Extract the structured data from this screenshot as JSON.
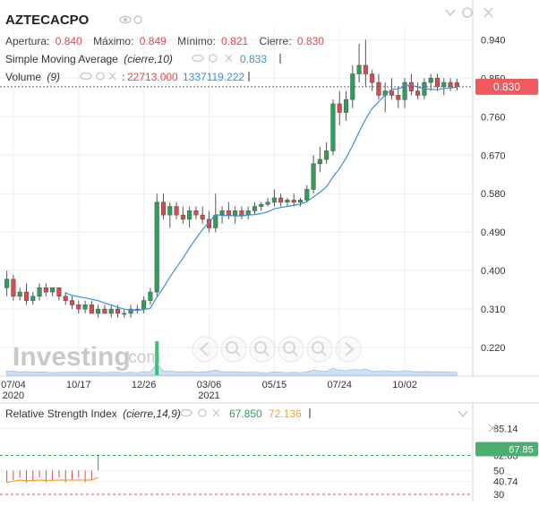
{
  "symbol": "AZTECACPO",
  "ohlc": {
    "open_label": "Apertura:",
    "open_value": "0.840",
    "high_label": "Máximo:",
    "high_value": "0.849",
    "low_label": "Mínimo:",
    "low_value": "0.821",
    "close_label": "Cierre:",
    "close_value": "0.830"
  },
  "sma": {
    "label": "Simple Moving Average",
    "params": "(cierre,10)",
    "value": "0.833"
  },
  "volume": {
    "label": "Volume",
    "params": "(9)",
    "value1": "22713.000",
    "value2": "1337119.222"
  },
  "rsi": {
    "label": "Relative Strength Index",
    "params": "(cierre,14,9)",
    "value1": "67.850",
    "value2": "72.136"
  },
  "watermark": {
    "name": "Investing",
    "suffix": ".com"
  },
  "price_badge": "0.830",
  "rsi_badge": "67.85",
  "colors": {
    "up": "#2ca05a",
    "down": "#e0474c",
    "sma": "#3f8fd8",
    "rsi_signal": "#f0a030",
    "volume": "#c3d8ef"
  },
  "chart_data": [
    {
      "type": "candlestick",
      "title": "AZTECACPO",
      "x_tick_labels": [
        {
          "label": "07/04",
          "sublabel": "2020"
        },
        {
          "label": "10/17",
          "sublabel": ""
        },
        {
          "label": "12/26",
          "sublabel": ""
        },
        {
          "label": "03/06",
          "sublabel": "2021"
        },
        {
          "label": "05/15",
          "sublabel": ""
        },
        {
          "label": "07/24",
          "sublabel": ""
        },
        {
          "label": "10/02",
          "sublabel": ""
        }
      ],
      "y_ticks": [
        "0.940",
        "0.850",
        "0.760",
        "0.670",
        "0.580",
        "0.490",
        "0.400",
        "0.310",
        "0.220"
      ],
      "ylim": [
        0.17,
        0.97
      ],
      "last_price": 0.83,
      "candles": [
        {
          "o": 0.36,
          "h": 0.4,
          "l": 0.34,
          "c": 0.38
        },
        {
          "o": 0.38,
          "h": 0.39,
          "l": 0.33,
          "c": 0.34
        },
        {
          "o": 0.34,
          "h": 0.36,
          "l": 0.33,
          "c": 0.35
        },
        {
          "o": 0.35,
          "h": 0.37,
          "l": 0.32,
          "c": 0.33
        },
        {
          "o": 0.33,
          "h": 0.35,
          "l": 0.32,
          "c": 0.34
        },
        {
          "o": 0.34,
          "h": 0.37,
          "l": 0.33,
          "c": 0.36
        },
        {
          "o": 0.36,
          "h": 0.37,
          "l": 0.34,
          "c": 0.35
        },
        {
          "o": 0.35,
          "h": 0.36,
          "l": 0.34,
          "c": 0.36
        },
        {
          "o": 0.36,
          "h": 0.36,
          "l": 0.33,
          "c": 0.34
        },
        {
          "o": 0.34,
          "h": 0.35,
          "l": 0.32,
          "c": 0.33
        },
        {
          "o": 0.33,
          "h": 0.34,
          "l": 0.31,
          "c": 0.32
        },
        {
          "o": 0.32,
          "h": 0.33,
          "l": 0.3,
          "c": 0.31
        },
        {
          "o": 0.31,
          "h": 0.33,
          "l": 0.3,
          "c": 0.32
        },
        {
          "o": 0.32,
          "h": 0.33,
          "l": 0.3,
          "c": 0.3
        },
        {
          "o": 0.3,
          "h": 0.32,
          "l": 0.29,
          "c": 0.31
        },
        {
          "o": 0.31,
          "h": 0.32,
          "l": 0.3,
          "c": 0.3
        },
        {
          "o": 0.3,
          "h": 0.32,
          "l": 0.29,
          "c": 0.31
        },
        {
          "o": 0.31,
          "h": 0.32,
          "l": 0.29,
          "c": 0.3
        },
        {
          "o": 0.3,
          "h": 0.31,
          "l": 0.29,
          "c": 0.3
        },
        {
          "o": 0.3,
          "h": 0.32,
          "l": 0.29,
          "c": 0.31
        },
        {
          "o": 0.31,
          "h": 0.32,
          "l": 0.3,
          "c": 0.31
        },
        {
          "o": 0.31,
          "h": 0.34,
          "l": 0.3,
          "c": 0.33
        },
        {
          "o": 0.33,
          "h": 0.36,
          "l": 0.32,
          "c": 0.35
        },
        {
          "o": 0.35,
          "h": 0.58,
          "l": 0.34,
          "c": 0.56
        },
        {
          "o": 0.56,
          "h": 0.58,
          "l": 0.52,
          "c": 0.53
        },
        {
          "o": 0.53,
          "h": 0.56,
          "l": 0.5,
          "c": 0.55
        },
        {
          "o": 0.55,
          "h": 0.56,
          "l": 0.52,
          "c": 0.53
        },
        {
          "o": 0.53,
          "h": 0.55,
          "l": 0.51,
          "c": 0.52
        },
        {
          "o": 0.52,
          "h": 0.55,
          "l": 0.5,
          "c": 0.54
        },
        {
          "o": 0.54,
          "h": 0.55,
          "l": 0.52,
          "c": 0.53
        },
        {
          "o": 0.53,
          "h": 0.55,
          "l": 0.51,
          "c": 0.52
        },
        {
          "o": 0.52,
          "h": 0.54,
          "l": 0.49,
          "c": 0.5
        },
        {
          "o": 0.5,
          "h": 0.58,
          "l": 0.49,
          "c": 0.53
        },
        {
          "o": 0.53,
          "h": 0.55,
          "l": 0.51,
          "c": 0.54
        },
        {
          "o": 0.54,
          "h": 0.56,
          "l": 0.52,
          "c": 0.53
        },
        {
          "o": 0.53,
          "h": 0.55,
          "l": 0.51,
          "c": 0.54
        },
        {
          "o": 0.54,
          "h": 0.55,
          "l": 0.52,
          "c": 0.53
        },
        {
          "o": 0.53,
          "h": 0.55,
          "l": 0.52,
          "c": 0.54
        },
        {
          "o": 0.54,
          "h": 0.56,
          "l": 0.53,
          "c": 0.55
        },
        {
          "o": 0.55,
          "h": 0.56,
          "l": 0.54,
          "c": 0.555
        },
        {
          "o": 0.555,
          "h": 0.57,
          "l": 0.55,
          "c": 0.56
        },
        {
          "o": 0.56,
          "h": 0.59,
          "l": 0.55,
          "c": 0.57
        },
        {
          "o": 0.57,
          "h": 0.58,
          "l": 0.55,
          "c": 0.56
        },
        {
          "o": 0.56,
          "h": 0.57,
          "l": 0.55,
          "c": 0.565
        },
        {
          "o": 0.565,
          "h": 0.58,
          "l": 0.55,
          "c": 0.56
        },
        {
          "o": 0.56,
          "h": 0.57,
          "l": 0.55,
          "c": 0.565
        },
        {
          "o": 0.565,
          "h": 0.6,
          "l": 0.56,
          "c": 0.59
        },
        {
          "o": 0.59,
          "h": 0.67,
          "l": 0.58,
          "c": 0.65
        },
        {
          "o": 0.65,
          "h": 0.69,
          "l": 0.63,
          "c": 0.66
        },
        {
          "o": 0.66,
          "h": 0.7,
          "l": 0.65,
          "c": 0.68
        },
        {
          "o": 0.68,
          "h": 0.8,
          "l": 0.67,
          "c": 0.79
        },
        {
          "o": 0.79,
          "h": 0.82,
          "l": 0.74,
          "c": 0.77
        },
        {
          "o": 0.77,
          "h": 0.82,
          "l": 0.75,
          "c": 0.8
        },
        {
          "o": 0.8,
          "h": 0.88,
          "l": 0.78,
          "c": 0.86
        },
        {
          "o": 0.86,
          "h": 0.93,
          "l": 0.84,
          "c": 0.88
        },
        {
          "o": 0.88,
          "h": 0.94,
          "l": 0.83,
          "c": 0.86
        },
        {
          "o": 0.86,
          "h": 0.87,
          "l": 0.82,
          "c": 0.84
        },
        {
          "o": 0.84,
          "h": 0.86,
          "l": 0.8,
          "c": 0.81
        },
        {
          "o": 0.81,
          "h": 0.84,
          "l": 0.77,
          "c": 0.82
        },
        {
          "o": 0.82,
          "h": 0.85,
          "l": 0.8,
          "c": 0.81
        },
        {
          "o": 0.81,
          "h": 0.83,
          "l": 0.78,
          "c": 0.8
        },
        {
          "o": 0.8,
          "h": 0.85,
          "l": 0.78,
          "c": 0.84
        },
        {
          "o": 0.84,
          "h": 0.86,
          "l": 0.81,
          "c": 0.82
        },
        {
          "o": 0.82,
          "h": 0.84,
          "l": 0.8,
          "c": 0.81
        },
        {
          "o": 0.81,
          "h": 0.85,
          "l": 0.8,
          "c": 0.84
        },
        {
          "o": 0.84,
          "h": 0.86,
          "l": 0.82,
          "c": 0.85
        },
        {
          "o": 0.85,
          "h": 0.86,
          "l": 0.82,
          "c": 0.83
        },
        {
          "o": 0.83,
          "h": 0.85,
          "l": 0.81,
          "c": 0.84
        },
        {
          "o": 0.84,
          "h": 0.85,
          "l": 0.82,
          "c": 0.83
        },
        {
          "o": 0.84,
          "h": 0.849,
          "l": 0.821,
          "c": 0.83
        }
      ]
    },
    {
      "type": "line",
      "title": "Relative Strength Index",
      "y_ticks": [
        "85.14",
        "62.63",
        "50",
        "40.74",
        "30"
      ],
      "ylim": [
        27,
        90
      ],
      "rsi_last": 67.85,
      "signal_last": 72.136
    }
  ]
}
